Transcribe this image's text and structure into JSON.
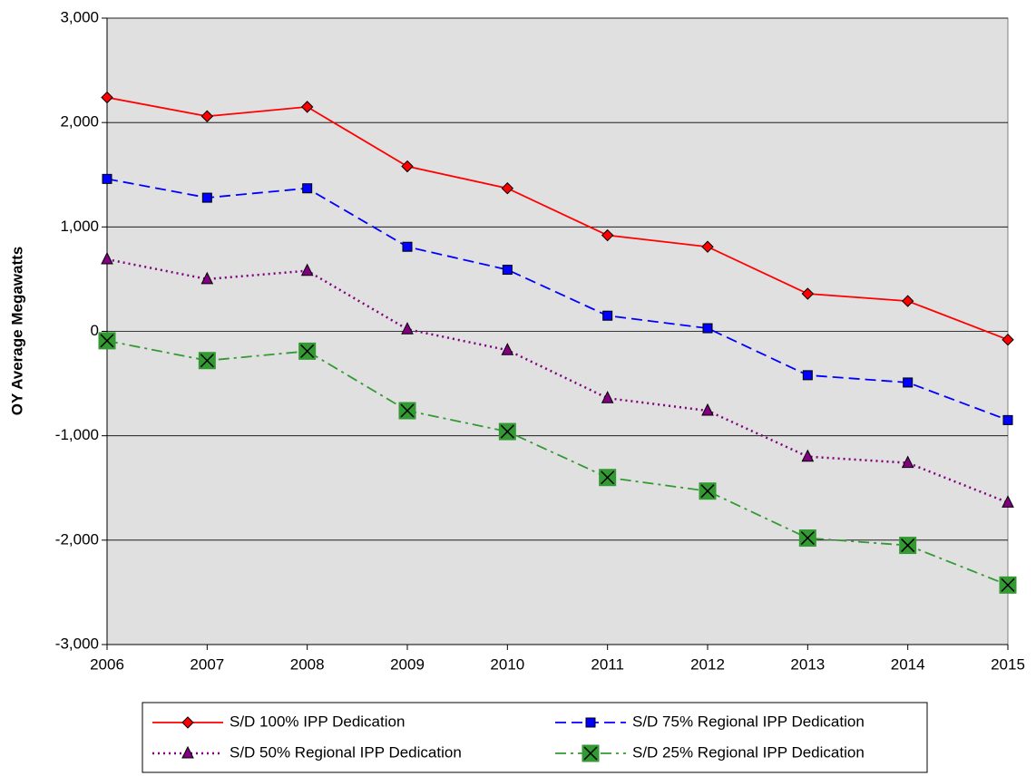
{
  "chart_data": {
    "type": "line",
    "y_label": "OY Average Megawatts",
    "x": [
      2006,
      2007,
      2008,
      2009,
      2010,
      2011,
      2012,
      2013,
      2014,
      2015
    ],
    "xlim": [
      2006,
      2015
    ],
    "xticks": [
      2006,
      2007,
      2008,
      2009,
      2010,
      2011,
      2012,
      2013,
      2014,
      2015
    ],
    "ylim": [
      -3000,
      3000
    ],
    "yticks": [
      {
        "value": -3000,
        "label": "-3,000"
      },
      {
        "value": -2000,
        "label": "-2,000"
      },
      {
        "value": -1000,
        "label": "-1,000"
      },
      0,
      {
        "value": 1000,
        "label": "1,000"
      },
      {
        "value": 2000,
        "label": "2,000"
      },
      {
        "value": 3000,
        "label": "3,000"
      }
    ],
    "grid": true,
    "legend": "bottom",
    "series": [
      {
        "name": "S/D 100% IPP Dedication",
        "color": "#ff0000",
        "marker": "diamond",
        "marker_color": "#ff0000",
        "line_style": "solid",
        "values": [
          2240,
          2060,
          2150,
          1580,
          1370,
          920,
          810,
          360,
          290,
          -80
        ]
      },
      {
        "name": "S/D 75% Regional IPP Dedication",
        "color": "#0000ff",
        "marker": "square",
        "marker_color": "#0000ff",
        "line_style": "dashed",
        "values": [
          1460,
          1280,
          1370,
          810,
          590,
          150,
          30,
          -420,
          -490,
          -850
        ]
      },
      {
        "name": "S/D 50% Regional IPP Dedication",
        "color": "#800080",
        "marker": "triangle",
        "marker_color": "#800080",
        "line_style": "dotted",
        "values": [
          690,
          500,
          580,
          20,
          -180,
          -640,
          -760,
          -1200,
          -1260,
          -1640
        ]
      },
      {
        "name": "S/D 25% Regional IPP Dedication",
        "color": "#339933",
        "marker": "xsquare",
        "marker_color": "#339933",
        "line_style": "dashdot",
        "values": [
          -90,
          -280,
          -190,
          -760,
          -960,
          -1400,
          -1530,
          -1980,
          -2050,
          -2430
        ]
      }
    ]
  }
}
